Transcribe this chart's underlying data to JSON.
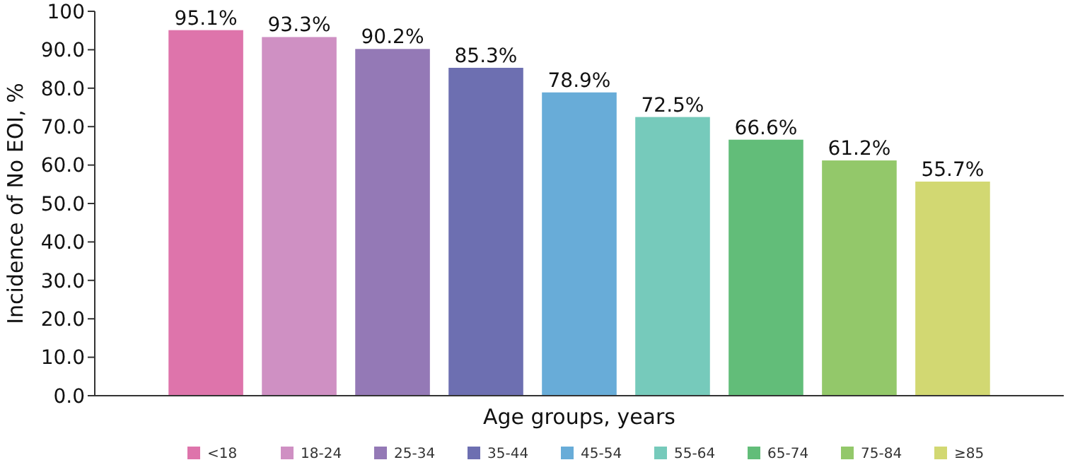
{
  "chart_data": {
    "type": "bar",
    "xlabel": "Age groups, years",
    "ylabel": "Incidence of No EOI, %",
    "categories": [
      null
    ],
    "series": [
      {
        "name": "<18",
        "color": "#de74ab",
        "values": [
          95.1
        ],
        "value_labels": [
          "95.1%"
        ]
      },
      {
        "name": "18-24",
        "color": "#cf90c3",
        "values": [
          93.3
        ],
        "value_labels": [
          "93.3%"
        ]
      },
      {
        "name": "25-34",
        "color": "#9479b6",
        "values": [
          90.2
        ],
        "value_labels": [
          "90.2%"
        ]
      },
      {
        "name": "35-44",
        "color": "#6d6fb1",
        "values": [
          85.3
        ],
        "value_labels": [
          "85.3%"
        ]
      },
      {
        "name": "45-54",
        "color": "#68acd8",
        "values": [
          78.9
        ],
        "value_labels": [
          "78.9%"
        ]
      },
      {
        "name": "55-64",
        "color": "#76cabb",
        "values": [
          72.5
        ],
        "value_labels": [
          "72.5%"
        ]
      },
      {
        "name": "65-74",
        "color": "#62bd79",
        "values": [
          66.6
        ],
        "value_labels": [
          "66.6%"
        ]
      },
      {
        "name": "75-84",
        "color": "#93c86a",
        "values": [
          61.2
        ],
        "value_labels": [
          "61.2%"
        ]
      },
      {
        "name": "≥85",
        "color": "#d2d872",
        "values": [
          55.7
        ],
        "value_labels": [
          "55.7%"
        ]
      }
    ],
    "ylim": [
      0,
      100
    ],
    "yticks": [
      {
        "value": 0,
        "label": "0.0"
      },
      {
        "value": 10,
        "label": "10.0"
      },
      {
        "value": 20,
        "label": "20.0"
      },
      {
        "value": 30,
        "label": "30.0"
      },
      {
        "value": 40,
        "label": "40.0"
      },
      {
        "value": 50,
        "label": "50.0"
      },
      {
        "value": 60,
        "label": "60.0"
      },
      {
        "value": 70,
        "label": "70.0"
      },
      {
        "value": 80,
        "label": "80.0"
      },
      {
        "value": 90,
        "label": "90.0"
      },
      100
    ],
    "grid": false,
    "legend": "bottom"
  }
}
